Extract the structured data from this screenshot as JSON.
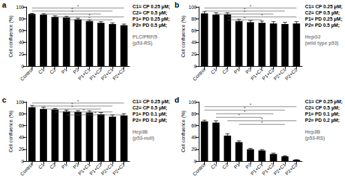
{
  "chart_data": [
    {
      "type": "bar",
      "title": "a",
      "subtitle": [
        "PLC/PRF/5",
        "(p53-RS)"
      ],
      "annotations": [
        "C1= CP 0.25 µM;",
        "C2= CP 0.5 µM;",
        "P1= PD 0.25 µM;",
        "P2= PD 0.5 µM;"
      ],
      "ylabel": "Cell confluence (%)",
      "categories": [
        "Control",
        "C1",
        "C2",
        "P1",
        "P2",
        "P1+C1",
        "P1+C2",
        "P2+C1",
        "P2+C2"
      ],
      "values": [
        88,
        87,
        83,
        82,
        79,
        76,
        73,
        71,
        69
      ],
      "errors": [
        1,
        1.5,
        2,
        2,
        2,
        2,
        2,
        2,
        2
      ],
      "color": "#000000",
      "ylim": [
        0,
        100
      ],
      "yticks": [
        0,
        20,
        40,
        60,
        80,
        100
      ],
      "grid": false,
      "significance": [
        {
          "from": "Control",
          "to": "P2+C2",
          "y": 98,
          "label": "*"
        },
        {
          "from": "Control",
          "to": "P2+C1",
          "y": 93,
          "label": "*"
        },
        {
          "from": "C1",
          "to": "P1+C2",
          "y": 88,
          "label": "*"
        },
        {
          "from": "C2",
          "to": "P2+C2",
          "y": 83,
          "label": "*"
        },
        {
          "from": "P1",
          "to": "P2+C1",
          "y": 78,
          "label": "*"
        }
      ]
    },
    {
      "type": "bar",
      "title": "b",
      "subtitle": [
        "HepG2",
        "(wild type p53)"
      ],
      "annotations": [
        "C1= CP 0.25 µM;",
        "C2= CP 0.5 µM;",
        "P1= PD 0.25 µM;",
        "P2= PD 0.5 µM;"
      ],
      "ylabel": "Cell confluence (%)",
      "categories": [
        "Control",
        "C1",
        "C2",
        "P1",
        "P2",
        "P1+C1",
        "P1+C2",
        "P2+C1",
        "P2+C2"
      ],
      "values": [
        89,
        87,
        87,
        76,
        74,
        73,
        72,
        71,
        72
      ],
      "errors": [
        3,
        3,
        3,
        3,
        3,
        3,
        3,
        3,
        3
      ],
      "color": "#000000",
      "ylim": [
        0,
        100
      ],
      "yticks": [
        0,
        20,
        40,
        60,
        80,
        100
      ],
      "grid": false,
      "significance": [
        {
          "from": "Control",
          "to": "P2+C2",
          "y": 98,
          "label": "*"
        },
        {
          "from": "Control",
          "to": "P2+C1",
          "y": 93,
          "label": "*"
        },
        {
          "from": "C1",
          "to": "P1+C2",
          "y": 88,
          "label": "*"
        },
        {
          "from": "C2",
          "to": "P2+C2",
          "y": 83,
          "label": "*"
        },
        {
          "from": "C2",
          "to": "P1+C1",
          "y": 78,
          "label": "*"
        }
      ]
    },
    {
      "type": "bar",
      "title": "c",
      "subtitle": [
        "Hep3B",
        "(p53-null)"
      ],
      "annotations": [
        "C1= CP 0.25 µM;",
        "C2= CP 0.5 µM;",
        "P1= PD 0.1 µM;",
        "P2= PD 0.2 µM;"
      ],
      "ylabel": "Cell confluence (%)",
      "categories": [
        "Control",
        "C1",
        "C2",
        "P1",
        "P2",
        "P1+C1",
        "P1+C2",
        "P2+C1",
        "P2+C2"
      ],
      "values": [
        91,
        88,
        87,
        84,
        83,
        82,
        79,
        75,
        77
      ],
      "errors": [
        3,
        3,
        2,
        2,
        2,
        3,
        3,
        3,
        3
      ],
      "color": "#000000",
      "ylim": [
        0,
        100
      ],
      "yticks": [
        0,
        20,
        40,
        60,
        80,
        100
      ],
      "grid": false,
      "significance": [
        {
          "from": "Control",
          "to": "P2+C2",
          "y": 98,
          "label": "*"
        },
        {
          "from": "Control",
          "to": "P2+C1",
          "y": 93,
          "label": "*"
        },
        {
          "from": "C1",
          "to": "P1+C2",
          "y": 88,
          "label": "*"
        },
        {
          "from": "C2",
          "to": "P2+C1",
          "y": 83,
          "label": "*"
        },
        {
          "from": "P1",
          "to": "P2+C2",
          "y": 78,
          "label": "*"
        }
      ]
    },
    {
      "type": "bar",
      "title": "d",
      "subtitle": [
        "Hep3B",
        "(p53-RS)"
      ],
      "annotations": [
        "C1= CP 0.25 µM;",
        "C2= CP 0.5 µM;",
        "P1= PD 0.1 µM;",
        "P2= PD 0.2 µM;"
      ],
      "ylabel": "Cell confluence (%)",
      "categories": [
        "Control",
        "C1",
        "C2",
        "P1",
        "P2",
        "P1+C1",
        "P1+C2",
        "P2+C1",
        "P2+C2"
      ],
      "values": [
        67,
        65,
        43,
        32,
        20,
        18,
        12,
        8,
        2
      ],
      "errors": [
        2,
        3,
        3,
        2,
        1.5,
        1.5,
        1.5,
        1,
        0.5
      ],
      "color": "#000000",
      "ylim": [
        0,
        100
      ],
      "yticks": [
        0,
        20,
        40,
        60,
        80,
        100
      ],
      "grid": false,
      "significance": [
        {
          "from": "Control",
          "to": "P2+C2",
          "y": 92,
          "label": "*"
        },
        {
          "from": "Control",
          "to": "P2+C1",
          "y": 86,
          "label": "*"
        },
        {
          "from": "C1",
          "to": "P1+C2",
          "y": 80,
          "label": "*"
        },
        {
          "from": "C1",
          "to": "P1+C1",
          "y": 74,
          "label": "*"
        },
        {
          "from": "C2",
          "to": "P2+C2",
          "y": 68,
          "label": "*"
        },
        {
          "from": "P1",
          "to": "P2+C1",
          "y": 62,
          "label": "*"
        }
      ]
    }
  ]
}
